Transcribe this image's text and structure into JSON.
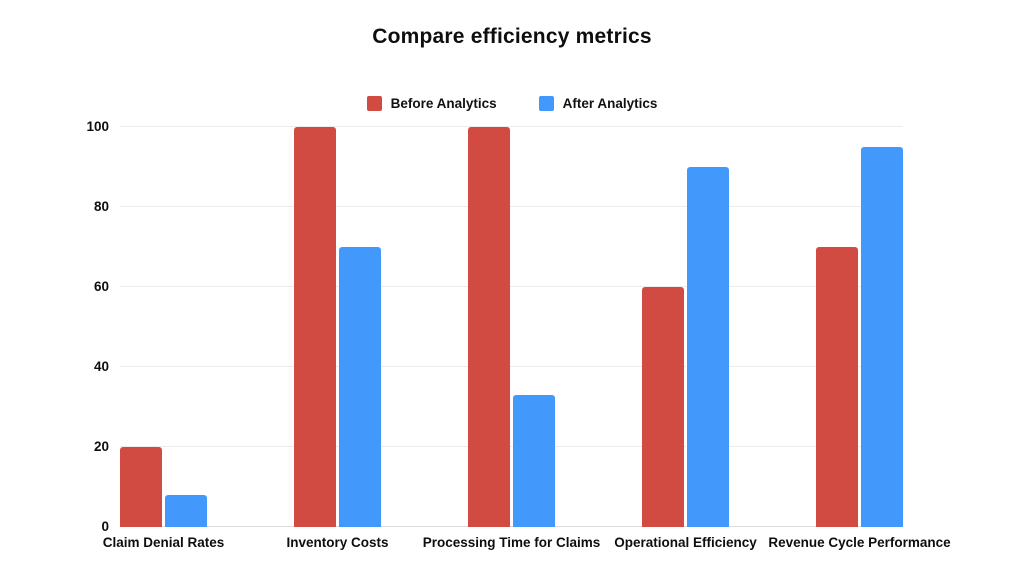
{
  "title": "Compare efficiency metrics",
  "chart_data": {
    "type": "bar",
    "title": "Compare efficiency metrics",
    "categories": [
      "Claim Denial Rates",
      "Inventory Costs",
      "Processing Time for Claims",
      "Operational Efficiency",
      "Revenue Cycle Performance"
    ],
    "series": [
      {
        "name": "Before Analytics",
        "color": "#d24b42",
        "values": [
          20,
          100,
          100,
          60,
          70
        ]
      },
      {
        "name": "After Analytics",
        "color": "#4299fb",
        "values": [
          8,
          70,
          33,
          90,
          95
        ]
      }
    ],
    "xlabel": "",
    "ylabel": "",
    "ylim": [
      0,
      100
    ],
    "yticks": [
      0,
      20,
      40,
      60,
      80,
      100
    ],
    "grid": "horizontal",
    "legend_position": "top-center"
  },
  "colors": {
    "background": "#ffffff",
    "grid": "#ececec",
    "baseline": "#dedede",
    "text": "#0e0e0e"
  }
}
